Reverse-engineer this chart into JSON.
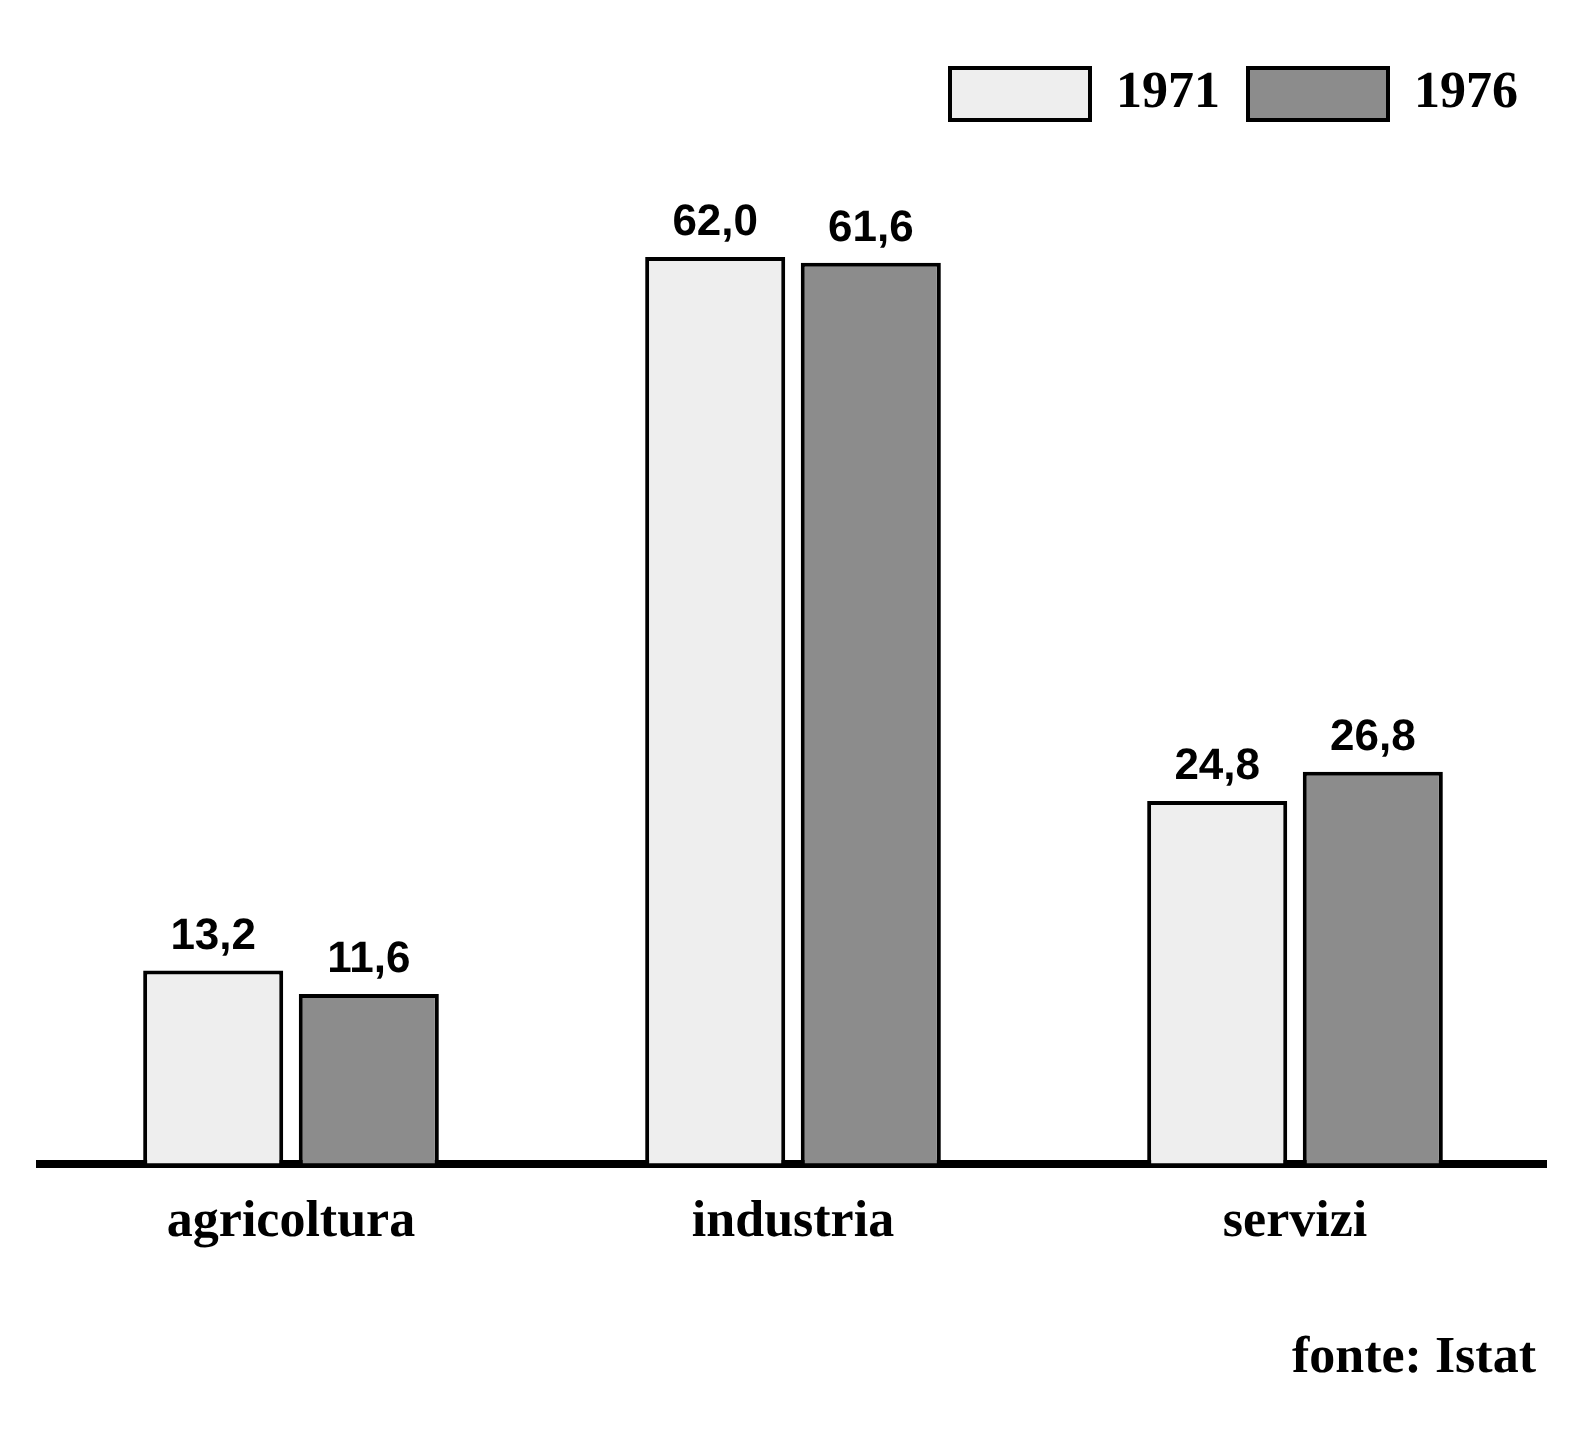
{
  "chart_data": {
    "type": "bar",
    "categories": [
      "agricoltura",
      "industria",
      "servizi"
    ],
    "series": [
      {
        "name": "1971",
        "color": "#eeeeee",
        "values": [
          13.2,
          62.0,
          24.8
        ],
        "value_labels": [
          "13,2",
          "62,0",
          "24,8"
        ]
      },
      {
        "name": "1976",
        "color": "#8c8c8c",
        "values": [
          11.6,
          61.6,
          26.8
        ],
        "value_labels": [
          "11,6",
          "61,6",
          "26,8"
        ]
      }
    ],
    "legend": "top right",
    "grid": false,
    "tick_labels": "x",
    "annotations": [
      "fonte: Istat"
    ]
  }
}
